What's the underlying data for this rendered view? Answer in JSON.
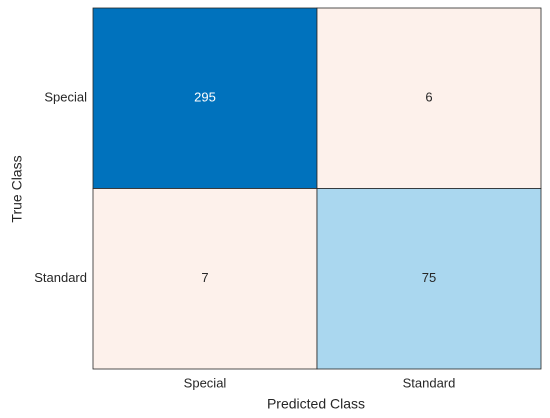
{
  "chart_data": {
    "type": "confusion_matrix",
    "xlabel": "Predicted Class",
    "ylabel": "True Class",
    "x_categories": [
      "Special",
      "Standard"
    ],
    "y_categories": [
      "Special",
      "Standard"
    ],
    "values": [
      [
        295,
        6
      ],
      [
        7,
        75
      ]
    ],
    "colors": [
      [
        "#0072bd",
        "#fdf1eb"
      ],
      [
        "#fdf1eb",
        "#aad7ef"
      ]
    ]
  }
}
